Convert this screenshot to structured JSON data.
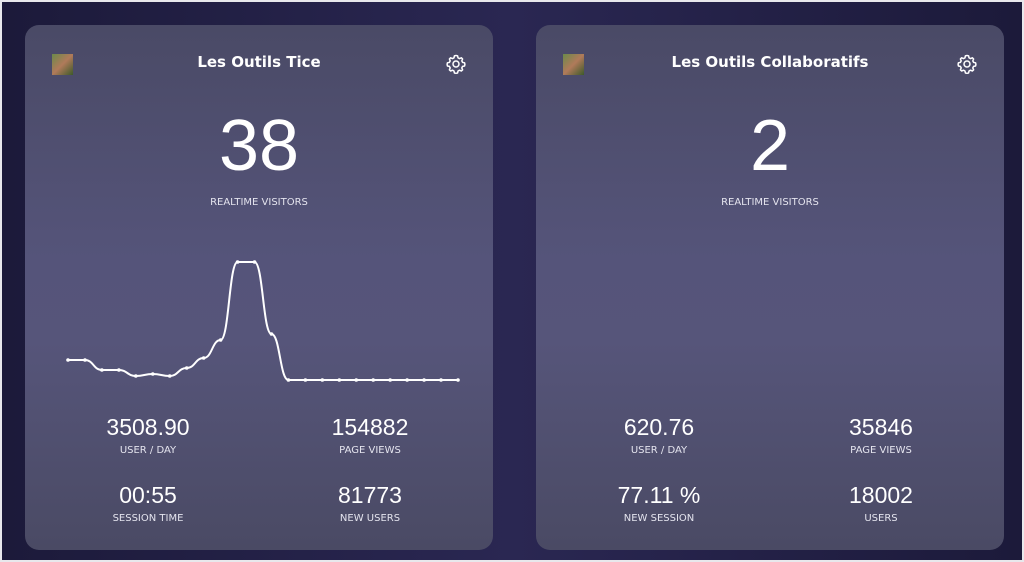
{
  "cards": [
    {
      "title": "Les Outils Tice",
      "realtime": "38",
      "realtime_label": "REALTIME VISITORS",
      "chart": {
        "type": "line",
        "values": [
          10,
          10,
          5,
          5,
          2,
          3,
          2,
          6,
          11,
          20,
          59,
          59,
          23,
          0,
          0,
          0,
          0,
          0,
          0,
          0,
          0,
          0,
          0,
          0
        ]
      },
      "stats": [
        {
          "value": "3508.90",
          "label": "USER / DAY"
        },
        {
          "value": "154882",
          "label": "PAGE VIEWS"
        },
        {
          "value": "00:55",
          "label": "SESSION TIME"
        },
        {
          "value": "81773",
          "label": "NEW USERS"
        }
      ]
    },
    {
      "title": "Les Outils Collaboratifs",
      "realtime": "2",
      "realtime_label": "REALTIME VISITORS",
      "stats": [
        {
          "value": "620.76",
          "label": "USER / DAY"
        },
        {
          "value": "35846",
          "label": "PAGE VIEWS"
        },
        {
          "value": "77.11 %",
          "label": "NEW SESSION"
        },
        {
          "value": "18002",
          "label": "USERS"
        }
      ]
    }
  ]
}
